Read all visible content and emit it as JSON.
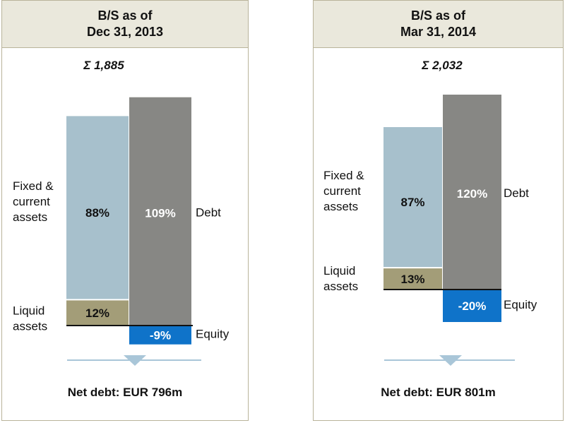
{
  "colors": {
    "header_bg": "#eae8dc",
    "panel_border": "#b9b39a",
    "fixed_assets": "#a7c0cc",
    "liquid_assets": "#a39d78",
    "debt": "#878784",
    "equity": "#0f73c9",
    "divider": "#a9c6d8"
  },
  "panels": [
    {
      "title_line1": "B/S as of",
      "title_line2": "Dec 31, 2013",
      "total_label": "Σ 1,885",
      "labels": {
        "fixed_assets": [
          "Fixed &",
          "current",
          "assets"
        ],
        "liquid_assets": [
          "Liquid",
          "assets"
        ],
        "debt": "Debt",
        "equity": "Equity"
      },
      "net_debt": "Net debt: EUR 796m"
    },
    {
      "title_line1": "B/S as of",
      "title_line2": "Mar 31, 2014",
      "total_label": "Σ 2,032",
      "labels": {
        "fixed_assets": [
          "Fixed &",
          "current",
          "assets"
        ],
        "liquid_assets": [
          "Liquid",
          "assets"
        ],
        "debt": "Debt",
        "equity": "Equity"
      },
      "net_debt": "Net debt: EUR 801m"
    }
  ],
  "chart_data": [
    {
      "type": "bar",
      "total": 1885,
      "series": [
        {
          "name": "Fixed & current assets",
          "value": 88,
          "value_label": "88%"
        },
        {
          "name": "Liquid assets",
          "value": 12,
          "value_label": "12%"
        },
        {
          "name": "Debt",
          "value": 109,
          "value_label": "109%"
        },
        {
          "name": "Equity",
          "value": -9,
          "value_label": "-9%"
        }
      ]
    },
    {
      "type": "bar",
      "total": 2032,
      "series": [
        {
          "name": "Fixed & current assets",
          "value": 87,
          "value_label": "87%"
        },
        {
          "name": "Liquid assets",
          "value": 13,
          "value_label": "13%"
        },
        {
          "name": "Debt",
          "value": 120,
          "value_label": "120%"
        },
        {
          "name": "Equity",
          "value": -20,
          "value_label": "-20%"
        }
      ]
    }
  ]
}
